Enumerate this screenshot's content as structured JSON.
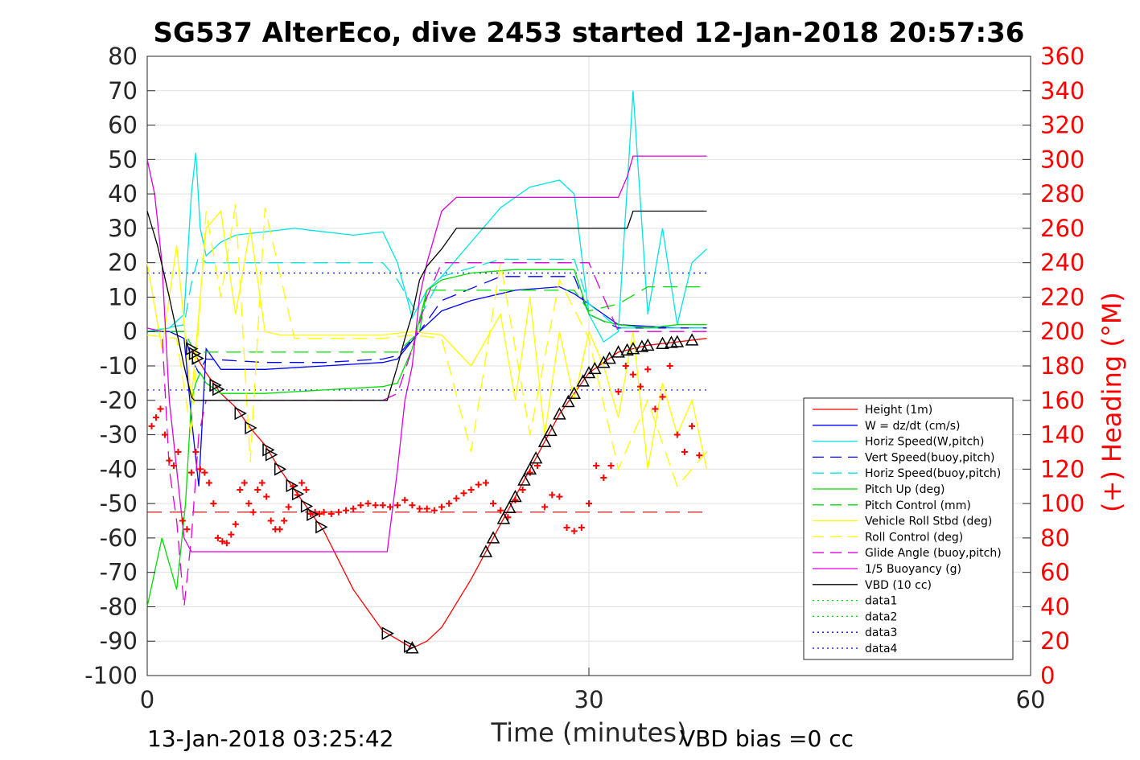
{
  "chart_data": {
    "type": "line",
    "title": "SG537 AlterEco, dive 2453 started 12-Jan-2018 20:57:36",
    "xlabel": "Time (minutes)",
    "ylabel_right": "(+) Heading (°M)",
    "xlim": [
      0,
      60
    ],
    "ylim": [
      -100,
      80
    ],
    "ylim_right": [
      0,
      360
    ],
    "x_ticks": [
      "0",
      "30",
      "60"
    ],
    "y_ticks": [
      "80",
      "70",
      "60",
      "50",
      "40",
      "30",
      "20",
      "10",
      "0",
      "-10",
      "-20",
      "-30",
      "-40",
      "-50",
      "-60",
      "-70",
      "-80",
      "-90",
      "-100"
    ],
    "y_ticks_right": [
      "360",
      "340",
      "320",
      "300",
      "280",
      "260",
      "240",
      "220",
      "200",
      "180",
      "160",
      "140",
      "120",
      "100",
      "80",
      "60",
      "40",
      "20",
      "0"
    ],
    "grid": true,
    "legend_position": "right",
    "footer_left": "13-Jan-2018 03:25:42",
    "footer_right": "VBD bias =0 cc",
    "colors": {
      "height": "#ff0000",
      "w": "#0000ff",
      "horiz": "#00e5e5",
      "pitch": "#00dd00",
      "roll": "#ffff00",
      "glide": "#dd00dd",
      "buoy": "#dd00dd",
      "vbd": "#000000"
    },
    "legend": [
      {
        "label": "Height (1m)",
        "color": "#ff0000",
        "dash": "solid"
      },
      {
        "label": "W = dz/dt (cm/s)",
        "color": "#0000ff",
        "dash": "solid"
      },
      {
        "label": "Horiz Speed(W,pitch)",
        "color": "#00e5e5",
        "dash": "solid"
      },
      {
        "label": "Vert Speed(buoy,pitch)",
        "color": "#0000ff",
        "dash": "dashed"
      },
      {
        "label": "Horiz Speed(buoy,pitch)",
        "color": "#00e5e5",
        "dash": "dashed"
      },
      {
        "label": "Pitch Up (deg)",
        "color": "#00dd00",
        "dash": "solid"
      },
      {
        "label": "Pitch Control (mm)",
        "color": "#00dd00",
        "dash": "dashed"
      },
      {
        "label": "Vehicle Roll Stbd (deg)",
        "color": "#ffff00",
        "dash": "solid"
      },
      {
        "label": "Roll Control (deg)",
        "color": "#ffff00",
        "dash": "dashed"
      },
      {
        "label": "Glide Angle (buoy,pitch)",
        "color": "#dd00dd",
        "dash": "dashed"
      },
      {
        "label": "1/5 Buoyancy (g)",
        "color": "#dd00dd",
        "dash": "solid"
      },
      {
        "label": "VBD (10 cc)",
        "color": "#000000",
        "dash": "solid"
      },
      {
        "label": "data1",
        "color": "#00dd00",
        "dash": "dotted"
      },
      {
        "label": "data2",
        "color": "#00dd00",
        "dash": "dotted"
      },
      {
        "label": "data3",
        "color": "#0000ff",
        "dash": "dotted"
      },
      {
        "label": "data4",
        "color": "#0000ff",
        "dash": "dotted"
      }
    ],
    "series": [
      {
        "name": "Height (1m)",
        "key": "height",
        "color": "#ff0000",
        "dash": "solid",
        "x": [
          3.0,
          4.0,
          5.0,
          6.0,
          7.0,
          8.0,
          9.0,
          10.0,
          11.0,
          12.0,
          14.0,
          16.0,
          18.0,
          19.0,
          20.0,
          22.0,
          24.0,
          26.0,
          28.0,
          30.0,
          32.0,
          34.0,
          36.0,
          38.0
        ],
        "y": [
          -5,
          -12,
          -18,
          -22,
          -28,
          -33,
          -40,
          -46,
          -52,
          -58,
          -75,
          -87,
          -92,
          -90,
          -86,
          -72,
          -56,
          -40,
          -24,
          -12,
          -6,
          -4,
          -3,
          -2
        ]
      },
      {
        "name": "W = dz/dt (cm/s)",
        "key": "w",
        "color": "#0000ff",
        "dash": "solid",
        "x": [
          0,
          1.5,
          2.5,
          3.0,
          3.5,
          4.0,
          5.0,
          8.0,
          12.0,
          16.0,
          17.0,
          18.5,
          20.0,
          22.0,
          25.0,
          28.0,
          29.0,
          30.0,
          32.0,
          36.0,
          38.0
        ],
        "y": [
          0,
          0,
          -2,
          -25,
          -45,
          -5,
          -11,
          -11,
          -10,
          -9,
          -8,
          0,
          6,
          9,
          12,
          13,
          11,
          8,
          2,
          1,
          1
        ]
      },
      {
        "name": "Horiz Speed(W,pitch)",
        "key": "horiz",
        "color": "#00e5e5",
        "dash": "solid",
        "x": [
          0,
          1.5,
          2.5,
          3.0,
          3.3,
          3.6,
          4.0,
          5.0,
          6.0,
          8.0,
          10.0,
          12.0,
          14.0,
          16.0,
          17.0,
          18.0,
          19.0,
          20.0,
          22.0,
          24.0,
          26.0,
          28.0,
          29.0,
          30.0,
          31.0,
          32.0,
          33.0,
          34.0,
          35.0,
          36.0,
          37.0,
          38.0
        ],
        "y": [
          0,
          1,
          5,
          40,
          52,
          30,
          22,
          26,
          28,
          29,
          30,
          29,
          28,
          29,
          20,
          4,
          12,
          16,
          26,
          36,
          42,
          44,
          40,
          5,
          -3,
          0,
          70,
          5,
          30,
          2,
          20,
          24
        ]
      },
      {
        "name": "Vert Speed(buoy,pitch)",
        "key": "vert",
        "color": "#0000ff",
        "dash": "dashed",
        "x": [
          0,
          2.5,
          3.0,
          3.5,
          4.0,
          8.0,
          12.0,
          16.0,
          17.0,
          18.5,
          20.0,
          24.0,
          29.0,
          30.0,
          32.0,
          38.0
        ],
        "y": [
          0,
          0,
          -8,
          -12,
          -8,
          -9,
          -9,
          -8,
          -7,
          0,
          9,
          16,
          16,
          5,
          1,
          1
        ]
      },
      {
        "name": "Horiz Speed(buoy,pitch)",
        "key": "horizb",
        "color": "#00e5e5",
        "dash": "dashed",
        "x": [
          0,
          2.5,
          3.0,
          3.5,
          4.0,
          8.0,
          12.0,
          16.0,
          17.0,
          18.5,
          20.0,
          24.0,
          29.0,
          30.0,
          32.0,
          38.0
        ],
        "y": [
          0,
          2,
          14,
          22,
          20,
          20,
          20,
          20,
          15,
          4,
          16,
          21,
          21,
          8,
          1,
          1
        ]
      },
      {
        "name": "Pitch Up (deg)",
        "key": "pitch",
        "color": "#00dd00",
        "dash": "solid",
        "x": [
          0,
          1.0,
          2.0,
          2.6,
          3.0,
          3.3,
          3.6,
          4.0,
          5.0,
          8.0,
          12.0,
          16.0,
          17.0,
          18.0,
          19.0,
          20.0,
          22.0,
          25.0,
          29.0,
          30.0,
          31.0,
          32.0,
          34.0,
          36.0,
          38.0
        ],
        "y": [
          -80,
          -60,
          -75,
          -50,
          -20,
          -15,
          -12,
          -15,
          -18,
          -18,
          -17,
          -16,
          -15,
          -5,
          12,
          15,
          17,
          18,
          18,
          5,
          3,
          2,
          1,
          2,
          2
        ]
      },
      {
        "name": "Pitch Control (mm)",
        "key": "pitchc",
        "color": "#00dd00",
        "dash": "dashed",
        "x": [
          0,
          2.5,
          3.0,
          3.5,
          4.0,
          16.0,
          17.0,
          18.5,
          19.0,
          29.0,
          30.0,
          32.0,
          34.0,
          36.0,
          38.0
        ],
        "y": [
          0,
          0,
          -4,
          -6,
          -6,
          -6,
          -6,
          0,
          12,
          12,
          6,
          8,
          13,
          13,
          13
        ]
      },
      {
        "name": "Vehicle Roll Stbd (deg)",
        "key": "roll",
        "color": "#ffff00",
        "dash": "solid",
        "x": [
          0,
          1.0,
          2.0,
          3.0,
          4.0,
          5.0,
          6.0,
          7.0,
          8.0,
          9.0,
          10.0,
          11.0,
          12.0,
          13.0,
          14.0,
          16.0,
          18.0,
          20.0,
          22.0,
          24.0,
          25.0,
          26.0,
          27.0,
          28.0,
          29.0,
          30.0,
          31.0,
          32.0,
          33.0,
          34.0,
          35.0,
          36.0,
          37.0,
          38.0
        ],
        "y": [
          20,
          -5,
          25,
          -20,
          30,
          35,
          5,
          30,
          0,
          -1,
          -1,
          -1,
          -1,
          -1,
          -1,
          -1,
          0,
          -1,
          -10,
          5,
          -20,
          10,
          -30,
          0,
          -20,
          0,
          -10,
          -25,
          0,
          -40,
          -15,
          -30,
          -20,
          -40
        ]
      },
      {
        "name": "Roll Control (deg)",
        "key": "rollc",
        "color": "#ffff00",
        "dash": "dashed",
        "x": [
          0,
          2.0,
          3.0,
          4.0,
          5.0,
          6.0,
          7.0,
          8.0,
          10.0,
          12.0,
          14.0,
          16.0,
          18.0,
          20.0,
          22.0,
          24.0,
          26.0,
          28.0,
          30.0,
          32.0,
          34.0,
          36.0,
          38.0
        ],
        "y": [
          -1,
          -2,
          -30,
          35,
          10,
          37,
          -38,
          36,
          -2,
          -2,
          -2,
          -2,
          -1,
          -2,
          -35,
          20,
          -30,
          15,
          -2,
          -40,
          -20,
          -45,
          -35
        ]
      },
      {
        "name": "Glide Angle (buoy,pitch)",
        "key": "glide",
        "color": "#dd00dd",
        "dash": "dashed",
        "x": [
          0,
          1.0,
          1.5,
          2.0,
          2.5,
          3.0,
          3.5,
          4.0,
          8.0,
          16.0,
          17.0,
          18.0,
          19.0,
          20.0,
          30.0,
          32.0,
          38.0
        ],
        "y": [
          1,
          0,
          -40,
          -55,
          -80,
          -60,
          -30,
          -20,
          -20,
          -20,
          -18,
          -5,
          10,
          20,
          20,
          0,
          0
        ]
      },
      {
        "name": "1/5 Buoyancy (g)",
        "key": "buoy",
        "color": "#dd00dd",
        "dash": "solid",
        "x": [
          0,
          0.5,
          1.0,
          1.5,
          2.5,
          3.0,
          3.2,
          16.3,
          17.0,
          17.5,
          18.0,
          18.5,
          19.0,
          20.0,
          21.0,
          29.0,
          32.0,
          32.6,
          33.0,
          38.0
        ],
        "y": [
          50,
          40,
          20,
          -20,
          -60,
          -64,
          -64,
          -64,
          -40,
          -20,
          -10,
          10,
          20,
          35,
          39,
          39,
          39,
          45,
          51,
          51
        ]
      },
      {
        "name": "VBD (10 cc)",
        "key": "vbd",
        "color": "#000000",
        "dash": "solid",
        "x": [
          0,
          0.7,
          1.5,
          2.0,
          2.5,
          3.0,
          3.2,
          16.3,
          17.0,
          17.5,
          18.0,
          18.5,
          19.0,
          20.0,
          21.0,
          29.0,
          32.0,
          32.6,
          33.0,
          38.0
        ],
        "y": [
          35,
          25,
          10,
          0,
          -10,
          -19,
          -20,
          -20,
          -10,
          -2,
          5,
          15,
          19,
          24,
          30,
          30,
          30,
          30,
          35,
          35
        ]
      }
    ],
    "reference_lines": [
      {
        "name": "data1",
        "color": "#00dd00",
        "dash": "dotted",
        "y": 17
      },
      {
        "name": "data3",
        "color": "#0000ff",
        "dash": "dotted",
        "y": 17
      },
      {
        "name": "data4",
        "color": "#0000ff",
        "dash": "dotted",
        "y": -17
      },
      {
        "name": "heading mean",
        "color": "#cc0000",
        "dash": "dashed",
        "y_right": 95
      }
    ],
    "heading_points": {
      "name": "Heading (+)",
      "color": "#ff0000",
      "x": [
        0.3,
        0.6,
        0.9,
        1.2,
        1.5,
        1.8,
        2.1,
        2.4,
        2.7,
        3.0,
        3.3,
        3.6,
        3.9,
        4.2,
        4.5,
        4.8,
        5.1,
        5.4,
        5.7,
        6.0,
        6.3,
        6.6,
        6.9,
        7.2,
        7.5,
        7.8,
        8.1,
        8.4,
        8.7,
        9.0,
        9.3,
        9.6,
        9.9,
        10.2,
        10.5,
        10.8,
        11.1,
        11.4,
        11.7,
        12.0,
        12.5,
        13.0,
        13.5,
        14.0,
        14.5,
        15.0,
        15.5,
        16.0,
        16.5,
        17.0,
        17.5,
        18.0,
        18.5,
        19.0,
        19.5,
        20.0,
        20.5,
        21.0,
        21.5,
        22.0,
        22.5,
        23.0,
        23.5,
        24.0,
        24.5,
        25.0,
        25.5,
        26.0,
        26.5,
        27.0,
        27.5,
        28.0,
        28.5,
        29.0,
        29.5,
        30.0,
        30.5,
        31.0,
        31.5,
        32.0,
        32.5,
        33.0,
        33.5,
        34.0,
        34.5,
        35.0,
        35.5,
        36.0,
        36.5,
        37.0,
        37.5
      ],
      "y": [
        145,
        150,
        155,
        140,
        125,
        122,
        130,
        90,
        85,
        118,
        130,
        120,
        118,
        112,
        100,
        80,
        78,
        77,
        82,
        88,
        108,
        112,
        100,
        95,
        108,
        112,
        104,
        90,
        85,
        85,
        90,
        98,
        110,
        105,
        112,
        108,
        94,
        95,
        94,
        95,
        94,
        95,
        96,
        97,
        99,
        100,
        99,
        99,
        98,
        99,
        102,
        99,
        97,
        97,
        96,
        98,
        100,
        103,
        106,
        108,
        111,
        112,
        100,
        96,
        92,
        102,
        108,
        118,
        122,
        98,
        105,
        104,
        86,
        84,
        86,
        100,
        122,
        115,
        122,
        165,
        180,
        175,
        168,
        178,
        155,
        162,
        180,
        140,
        130,
        145,
        128
      ]
    }
  }
}
